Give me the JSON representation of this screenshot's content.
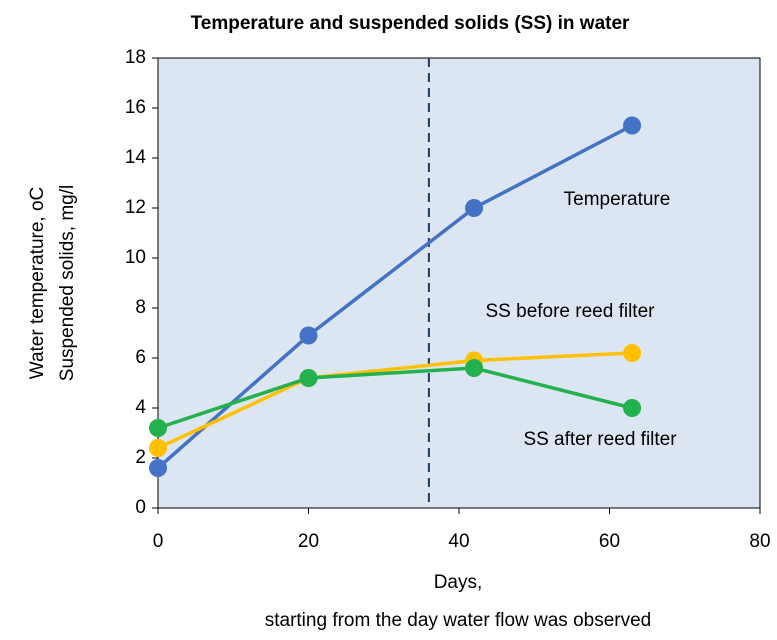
{
  "chart_data": {
    "type": "line",
    "title": "Temperature and suspended solids (SS)  in water",
    "xlabel": [
      "Days,",
      "starting from the day water flow was observed"
    ],
    "ylabel": [
      "Water temperature, oC",
      "Suspended solids, mg/l"
    ],
    "x": [
      0,
      20,
      42,
      63
    ],
    "series": [
      {
        "name": "Temperature",
        "color": "#4472c4",
        "values": [
          1.6,
          6.9,
          12,
          15.3
        ]
      },
      {
        "name": "SS before reed filter",
        "color": "#ffc000",
        "values": [
          2.4,
          5.2,
          5.9,
          6.2
        ]
      },
      {
        "name": "SS after reed filter",
        "color": "#22b14c",
        "values": [
          3.2,
          5.2,
          5.6,
          4.0
        ]
      }
    ],
    "reference_line": {
      "x": 36,
      "color": "#1f3864"
    },
    "xlim": [
      0,
      80
    ],
    "xticks": [
      0,
      20,
      40,
      60,
      80
    ],
    "ylim": [
      0,
      18
    ],
    "yticks": [
      0,
      2,
      4,
      6,
      8,
      10,
      12,
      14,
      16,
      18
    ],
    "background": "#dce6f2"
  }
}
